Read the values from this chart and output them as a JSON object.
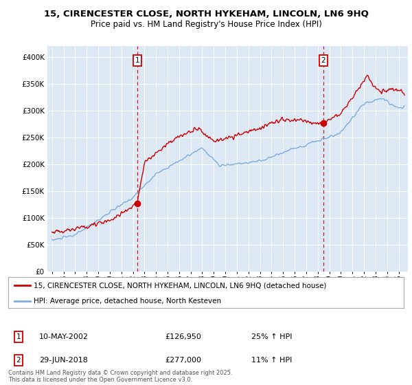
{
  "title": "15, CIRENCESTER CLOSE, NORTH HYKEHAM, LINCOLN, LN6 9HQ",
  "subtitle": "Price paid vs. HM Land Registry's House Price Index (HPI)",
  "background_color": "#dce9f5",
  "plot_bg_color": "#dce9f5",
  "legend_line1": "15, CIRENCESTER CLOSE, NORTH HYKEHAM, LINCOLN, LN6 9HQ (detached house)",
  "legend_line2": "HPI: Average price, detached house, North Kesteven",
  "annotation1_date": "10-MAY-2002",
  "annotation1_price": "£126,950",
  "annotation1_hpi": "25% ↑ HPI",
  "annotation2_date": "29-JUN-2018",
  "annotation2_price": "£277,000",
  "annotation2_hpi": "11% ↑ HPI",
  "footer": "Contains HM Land Registry data © Crown copyright and database right 2025.\nThis data is licensed under the Open Government Licence v3.0.",
  "price_color": "#cc0000",
  "hpi_color": "#7aacdc",
  "marker1_x": 2002.37,
  "marker1_y": 126950,
  "marker2_x": 2018.49,
  "marker2_y": 277000,
  "ylim": [
    0,
    420000
  ],
  "xlim_start": 1994.6,
  "xlim_end": 2025.8
}
